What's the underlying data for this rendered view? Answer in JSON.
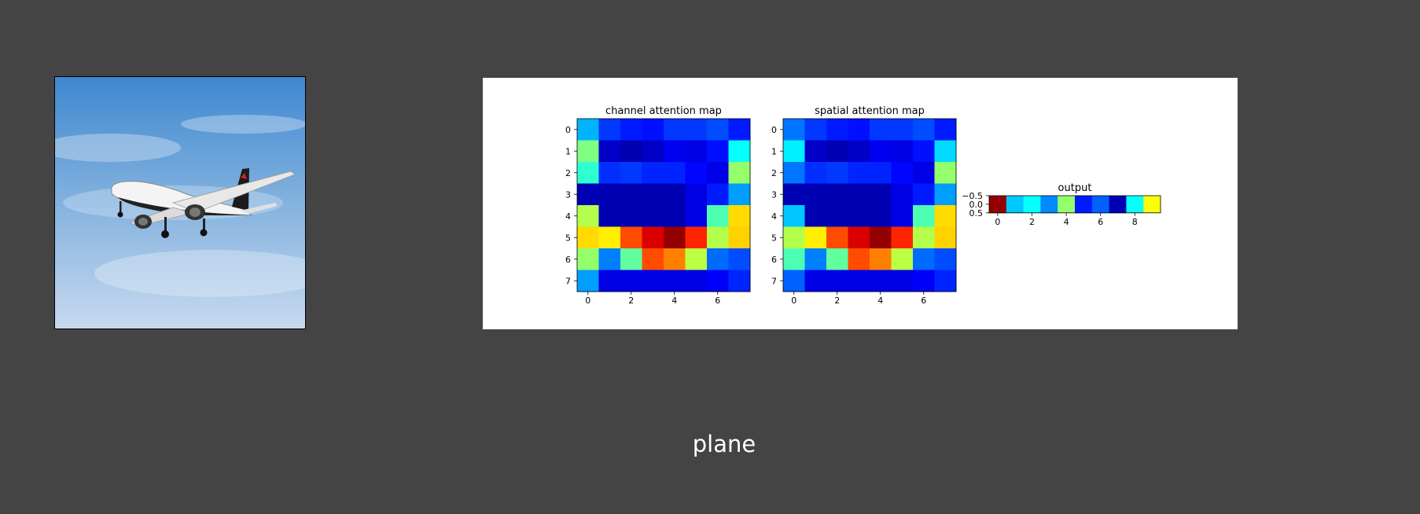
{
  "prediction": {
    "label": "plane"
  },
  "input_image": {
    "subject": "airliner-in-flight",
    "sky_color": "#4a8fd4"
  },
  "chart_data": [
    {
      "type": "heatmap",
      "title": "channel attention map",
      "xticks": [
        0,
        2,
        4,
        6
      ],
      "yticks": [
        0,
        1,
        2,
        3,
        4,
        5,
        6,
        7
      ],
      "colormap": "jet",
      "range": [
        0,
        1
      ],
      "grid": false,
      "values": [
        [
          0.3,
          0.18,
          0.15,
          0.14,
          0.18,
          0.18,
          0.2,
          0.15
        ],
        [
          0.5,
          0.07,
          0.05,
          0.07,
          0.11,
          0.1,
          0.14,
          0.38
        ],
        [
          0.42,
          0.17,
          0.18,
          0.16,
          0.16,
          0.13,
          0.1,
          0.52
        ],
        [
          0.05,
          0.05,
          0.05,
          0.05,
          0.05,
          0.1,
          0.15,
          0.28
        ],
        [
          0.55,
          0.05,
          0.05,
          0.05,
          0.05,
          0.1,
          0.45,
          0.66
        ],
        [
          0.66,
          0.64,
          0.8,
          0.91,
          0.98,
          0.84,
          0.55,
          0.67
        ],
        [
          0.52,
          0.25,
          0.47,
          0.8,
          0.75,
          0.56,
          0.23,
          0.2
        ],
        [
          0.28,
          0.1,
          0.1,
          0.1,
          0.1,
          0.1,
          0.12,
          0.16
        ]
      ]
    },
    {
      "type": "heatmap",
      "title": "spatial attention map",
      "xticks": [
        0,
        2,
        4,
        6
      ],
      "yticks": [
        0,
        1,
        2,
        3,
        4,
        5,
        6,
        7
      ],
      "colormap": "jet",
      "range": [
        0,
        1
      ],
      "grid": false,
      "values": [
        [
          0.24,
          0.18,
          0.15,
          0.14,
          0.18,
          0.18,
          0.2,
          0.15
        ],
        [
          0.36,
          0.07,
          0.05,
          0.07,
          0.11,
          0.1,
          0.14,
          0.34
        ],
        [
          0.24,
          0.17,
          0.18,
          0.16,
          0.16,
          0.13,
          0.1,
          0.52
        ],
        [
          0.05,
          0.05,
          0.05,
          0.05,
          0.05,
          0.1,
          0.15,
          0.28
        ],
        [
          0.32,
          0.05,
          0.05,
          0.05,
          0.05,
          0.1,
          0.45,
          0.66
        ],
        [
          0.55,
          0.64,
          0.8,
          0.91,
          0.98,
          0.84,
          0.55,
          0.67
        ],
        [
          0.45,
          0.25,
          0.47,
          0.8,
          0.75,
          0.56,
          0.23,
          0.2
        ],
        [
          0.22,
          0.1,
          0.1,
          0.1,
          0.1,
          0.1,
          0.12,
          0.16
        ]
      ]
    },
    {
      "type": "heatmap",
      "title": "output",
      "xticks": [
        0,
        2,
        4,
        6,
        8
      ],
      "yticks": [
        -0.5,
        0.0,
        0.5
      ],
      "ytick_labels": [
        "−0.5",
        "0.0",
        "0.5"
      ],
      "colormap": "jet",
      "range": [
        0,
        1
      ],
      "grid": false,
      "values": [
        [
          0.98,
          0.32,
          0.38,
          0.26,
          0.52,
          0.15,
          0.22,
          0.05,
          0.38,
          0.62
        ]
      ]
    }
  ]
}
